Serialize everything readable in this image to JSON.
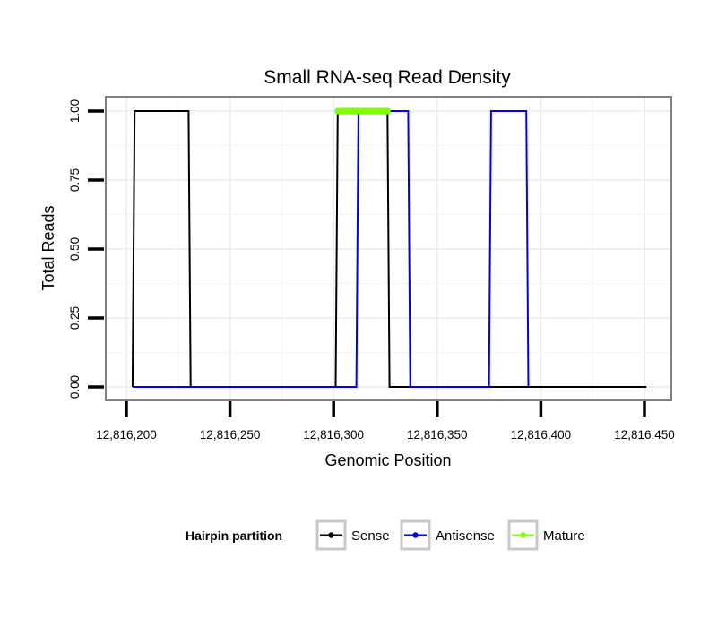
{
  "chart_data": {
    "type": "line",
    "title": "Small RNA-seq Read Density",
    "xlabel": "Genomic Position",
    "ylabel": "Total Reads",
    "xlim": [
      12816200,
      12816450
    ],
    "ylim": [
      0,
      1
    ],
    "x_ticks": [
      12816200,
      12816250,
      12816300,
      12816350,
      12816400,
      12816450
    ],
    "x_tick_labels": [
      "12,816,200",
      "12,816,250",
      "12,816,300",
      "12,816,350",
      "12,816,400",
      "12,816,450"
    ],
    "y_ticks": [
      0,
      0.25,
      0.5,
      0.75,
      1
    ],
    "y_tick_labels": [
      "0.00",
      "0.25",
      "0.50",
      "0.75",
      "1.00"
    ],
    "series": [
      {
        "name": "Sense",
        "color": "#000000",
        "x": [
          12816203,
          12816204,
          12816230,
          12816231,
          12816301,
          12816302,
          12816326,
          12816327,
          12816451
        ],
        "y": [
          0,
          1,
          1,
          0,
          0,
          1,
          1,
          0,
          0
        ]
      },
      {
        "name": "Antisense",
        "color": "#0000ee",
        "x": [
          12816203,
          12816311,
          12816312,
          12816336,
          12816337,
          12816375,
          12816376,
          12816393,
          12816394
        ],
        "y": [
          0,
          0,
          1,
          1,
          0,
          0,
          1,
          1,
          0
        ]
      },
      {
        "name": "Mature",
        "color": "#7fff00",
        "x": [
          12816302,
          12816326
        ],
        "y": [
          1,
          1
        ]
      }
    ],
    "legend": {
      "title": "Hairpin partition",
      "position": "bottom",
      "entries": [
        {
          "label": "Sense",
          "color": "#000000"
        },
        {
          "label": "Antisense",
          "color": "#0000ee"
        },
        {
          "label": "Mature",
          "color": "#7fff00"
        }
      ]
    },
    "grid": true
  }
}
